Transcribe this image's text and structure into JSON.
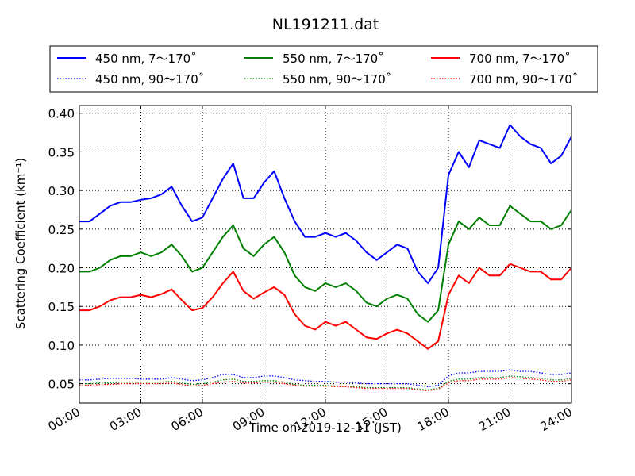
{
  "chart_data": {
    "type": "line",
    "title": "NL191211.dat",
    "xlabel": "Time on 2019-12-11 (JST)",
    "ylabel": "Scattering Coefficient (km⁻¹)",
    "xlim": [
      0,
      24
    ],
    "ylim": [
      0.025,
      0.41
    ],
    "x_ticks": [
      0,
      3,
      6,
      9,
      12,
      15,
      18,
      21,
      24
    ],
    "x_tick_labels": [
      "00:00",
      "03:00",
      "06:00",
      "09:00",
      "12:00",
      "15:00",
      "18:00",
      "21:00",
      "24:00"
    ],
    "y_ticks": [
      0.05,
      0.1,
      0.15,
      0.2,
      0.25,
      0.3,
      0.35,
      0.4
    ],
    "y_tick_labels": [
      "0.05",
      "0.10",
      "0.15",
      "0.20",
      "0.25",
      "0.30",
      "0.35",
      "0.40"
    ],
    "grid": true,
    "legend_position": "top, above plot",
    "x": [
      0,
      0.5,
      1,
      1.5,
      2,
      2.5,
      3,
      3.5,
      4,
      4.5,
      5,
      5.5,
      6,
      6.5,
      7,
      7.5,
      8,
      8.5,
      9,
      9.5,
      10,
      10.5,
      11,
      11.5,
      12,
      12.5,
      13,
      13.5,
      14,
      14.5,
      15,
      15.5,
      16,
      16.5,
      17,
      17.5,
      18,
      18.5,
      19,
      19.5,
      20,
      20.5,
      21,
      21.5,
      22,
      22.5,
      23,
      23.5,
      24
    ],
    "series": [
      {
        "name": "450 nm, 7～170˚",
        "color": "#0000ff",
        "style": "solid",
        "values": [
          0.26,
          0.26,
          0.27,
          0.28,
          0.285,
          0.285,
          0.288,
          0.29,
          0.295,
          0.305,
          0.28,
          0.26,
          0.265,
          0.29,
          0.315,
          0.335,
          0.29,
          0.29,
          0.31,
          0.325,
          0.29,
          0.26,
          0.24,
          0.24,
          0.245,
          0.24,
          0.245,
          0.235,
          0.22,
          0.21,
          0.22,
          0.23,
          0.225,
          0.195,
          0.18,
          0.2,
          0.32,
          0.35,
          0.33,
          0.365,
          0.36,
          0.355,
          0.385,
          0.37,
          0.36,
          0.355,
          0.335,
          0.345,
          0.37
        ]
      },
      {
        "name": "450 nm, 90～170˚",
        "color": "#0000ff",
        "style": "dotted",
        "values": [
          0.055,
          0.055,
          0.056,
          0.057,
          0.057,
          0.057,
          0.056,
          0.056,
          0.056,
          0.058,
          0.056,
          0.054,
          0.055,
          0.058,
          0.062,
          0.062,
          0.058,
          0.058,
          0.06,
          0.06,
          0.058,
          0.055,
          0.054,
          0.053,
          0.053,
          0.052,
          0.052,
          0.051,
          0.05,
          0.05,
          0.05,
          0.05,
          0.05,
          0.048,
          0.046,
          0.048,
          0.06,
          0.064,
          0.064,
          0.066,
          0.066,
          0.066,
          0.068,
          0.066,
          0.066,
          0.064,
          0.062,
          0.062,
          0.064
        ]
      },
      {
        "name": "550 nm, 7～170˚",
        "color": "#008000",
        "style": "solid",
        "values": [
          0.195,
          0.195,
          0.2,
          0.21,
          0.215,
          0.215,
          0.22,
          0.215,
          0.22,
          0.23,
          0.215,
          0.195,
          0.2,
          0.22,
          0.24,
          0.255,
          0.225,
          0.215,
          0.23,
          0.24,
          0.22,
          0.19,
          0.175,
          0.17,
          0.18,
          0.175,
          0.18,
          0.17,
          0.155,
          0.15,
          0.16,
          0.165,
          0.16,
          0.14,
          0.13,
          0.145,
          0.23,
          0.26,
          0.25,
          0.265,
          0.255,
          0.255,
          0.28,
          0.27,
          0.26,
          0.26,
          0.25,
          0.255,
          0.275
        ]
      },
      {
        "name": "550 nm, 90～170˚",
        "color": "#008000",
        "style": "dotted",
        "values": [
          0.05,
          0.05,
          0.051,
          0.051,
          0.052,
          0.052,
          0.052,
          0.052,
          0.052,
          0.053,
          0.051,
          0.049,
          0.05,
          0.052,
          0.055,
          0.056,
          0.053,
          0.053,
          0.054,
          0.054,
          0.052,
          0.049,
          0.048,
          0.048,
          0.048,
          0.047,
          0.047,
          0.046,
          0.045,
          0.045,
          0.045,
          0.045,
          0.045,
          0.043,
          0.042,
          0.044,
          0.053,
          0.056,
          0.056,
          0.058,
          0.058,
          0.058,
          0.06,
          0.059,
          0.058,
          0.057,
          0.055,
          0.055,
          0.057
        ]
      },
      {
        "name": "700 nm, 7～170˚",
        "color": "#ff0000",
        "style": "solid",
        "values": [
          0.145,
          0.145,
          0.15,
          0.158,
          0.162,
          0.162,
          0.165,
          0.162,
          0.166,
          0.172,
          0.158,
          0.145,
          0.148,
          0.162,
          0.18,
          0.195,
          0.17,
          0.16,
          0.168,
          0.175,
          0.165,
          0.14,
          0.125,
          0.12,
          0.13,
          0.125,
          0.13,
          0.12,
          0.11,
          0.108,
          0.115,
          0.12,
          0.115,
          0.105,
          0.095,
          0.105,
          0.165,
          0.19,
          0.18,
          0.2,
          0.19,
          0.19,
          0.205,
          0.2,
          0.195,
          0.195,
          0.185,
          0.185,
          0.2
        ]
      },
      {
        "name": "700 nm, 90～170˚",
        "color": "#ff0000",
        "style": "dotted",
        "values": [
          0.048,
          0.048,
          0.049,
          0.049,
          0.05,
          0.05,
          0.05,
          0.05,
          0.05,
          0.051,
          0.049,
          0.047,
          0.048,
          0.05,
          0.052,
          0.053,
          0.051,
          0.051,
          0.052,
          0.052,
          0.05,
          0.048,
          0.047,
          0.047,
          0.047,
          0.046,
          0.046,
          0.045,
          0.044,
          0.044,
          0.044,
          0.044,
          0.044,
          0.042,
          0.041,
          0.043,
          0.051,
          0.054,
          0.054,
          0.056,
          0.056,
          0.056,
          0.058,
          0.057,
          0.056,
          0.055,
          0.053,
          0.053,
          0.055
        ]
      }
    ]
  }
}
